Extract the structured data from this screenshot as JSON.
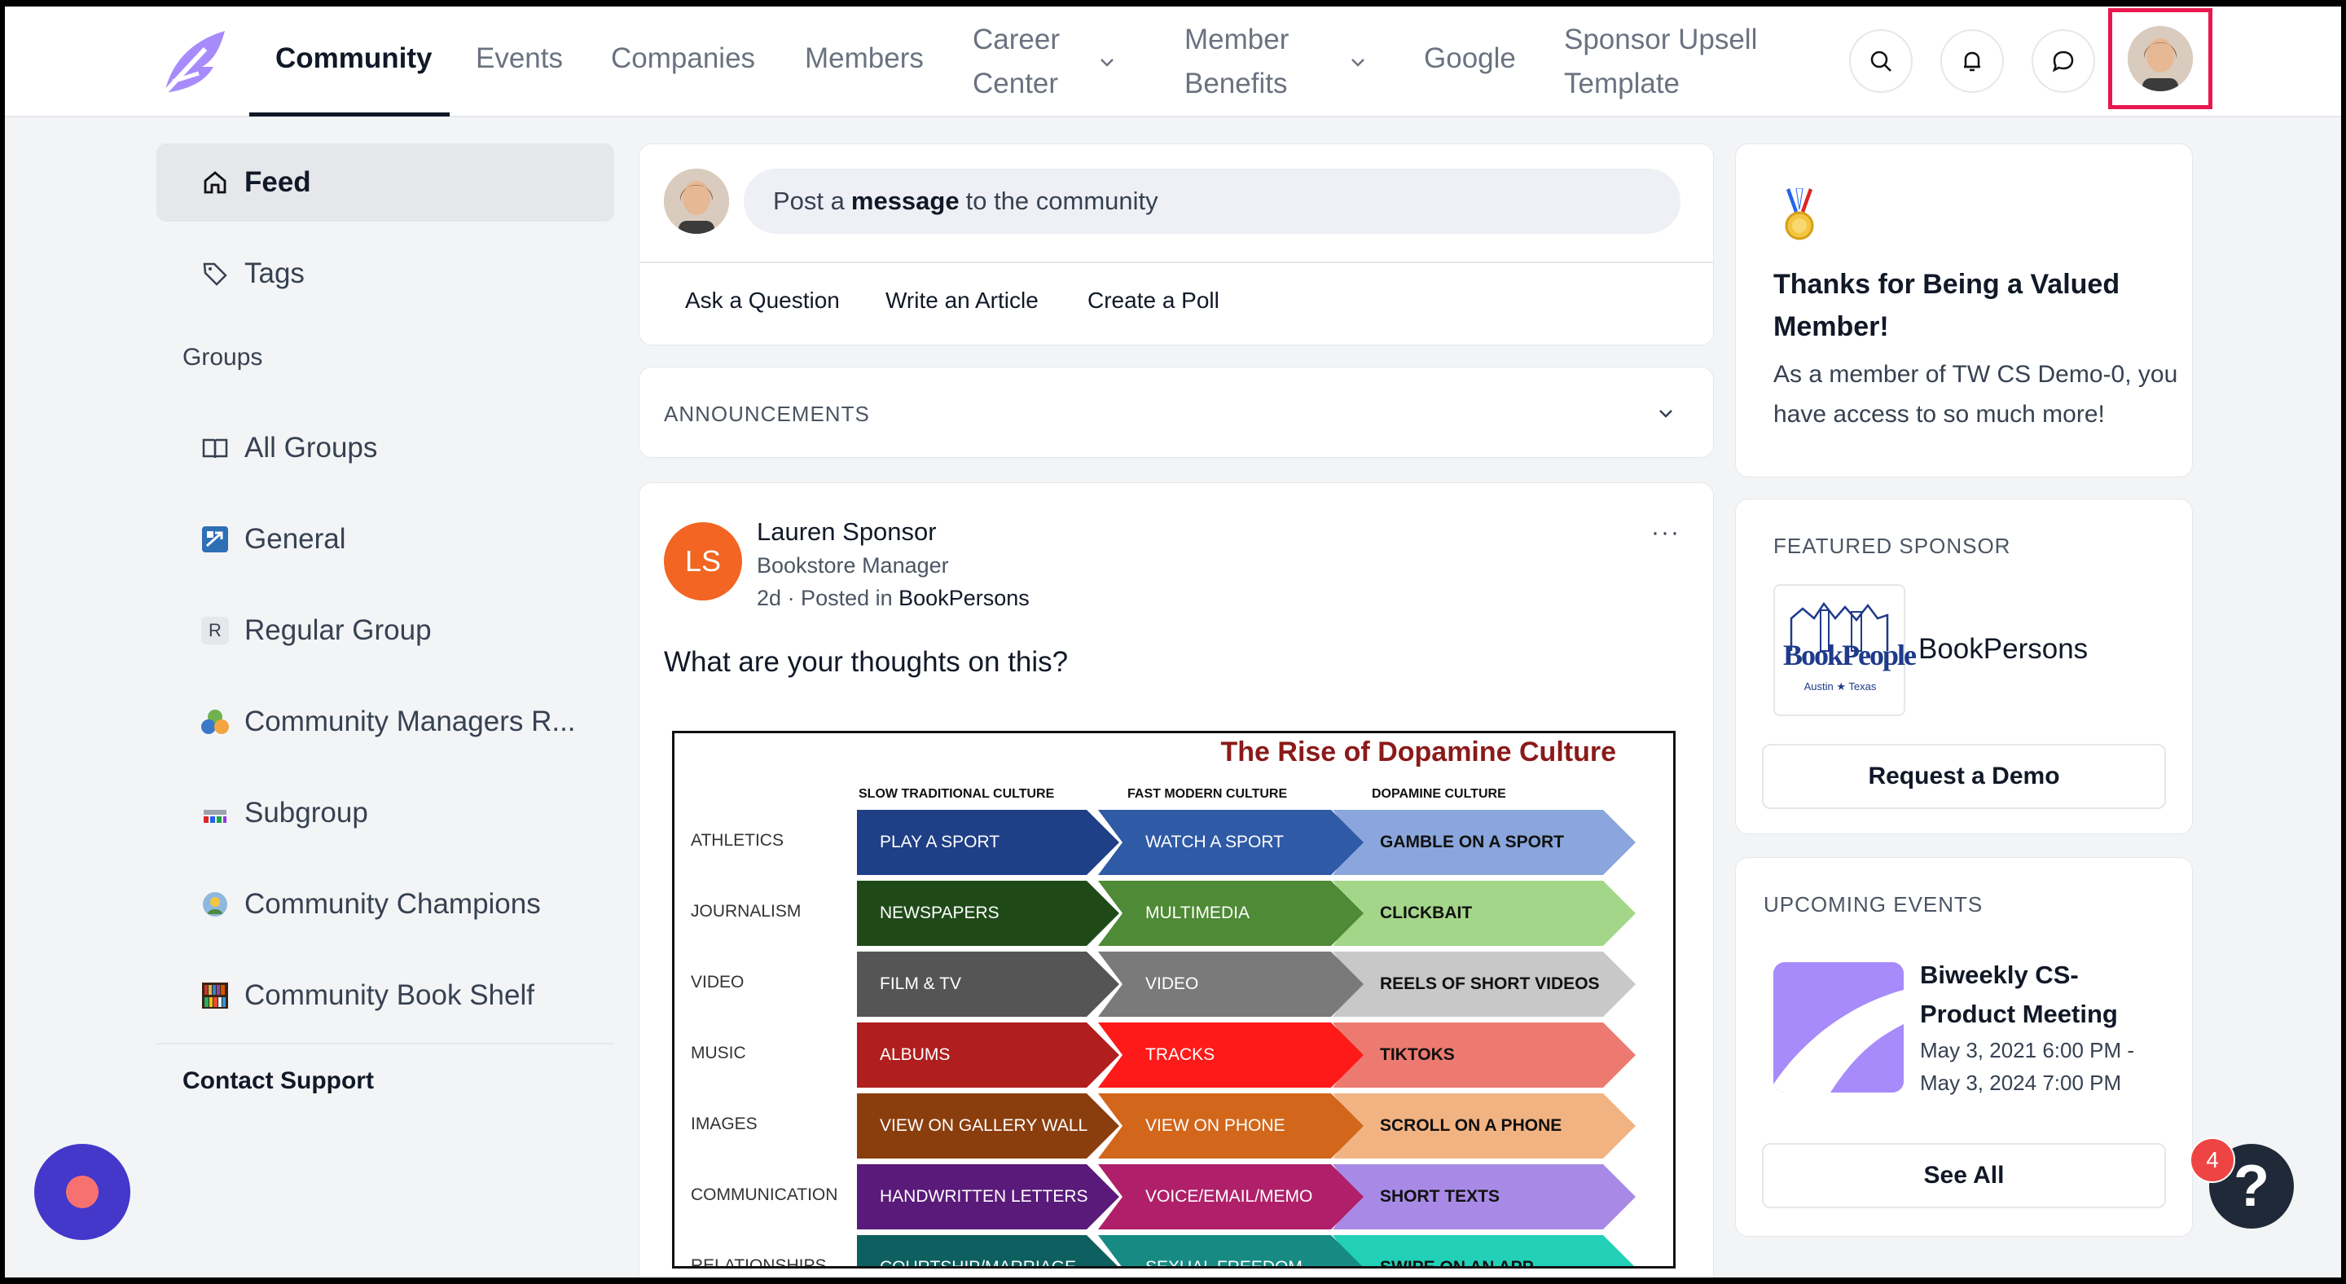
{
  "nav": {
    "items": [
      {
        "label": "Community",
        "active": true
      },
      {
        "label": "Events"
      },
      {
        "label": "Companies"
      },
      {
        "label": "Members"
      },
      {
        "label": "Career Center",
        "dropdown": true
      },
      {
        "label": "Member Benefits",
        "dropdown": true
      },
      {
        "label": "Google"
      },
      {
        "label": "Sponsor Upsell Template"
      }
    ],
    "icons": [
      "search-icon",
      "bell-icon",
      "chat-icon"
    ]
  },
  "sidebar": {
    "feed": "Feed",
    "tags": "Tags",
    "groups_label": "Groups",
    "groups": [
      {
        "label": "All Groups",
        "icon": "book-icon"
      },
      {
        "label": "General",
        "icon": "general-group-icon"
      },
      {
        "label": "Regular Group",
        "icon": "letter-r-icon",
        "initial": "R"
      },
      {
        "label": "Community Managers R...",
        "icon": "community-managers-icon"
      },
      {
        "label": "Subgroup",
        "icon": "subgroup-icon"
      },
      {
        "label": "Community Champions",
        "icon": "champions-icon"
      },
      {
        "label": "Community Book Shelf",
        "icon": "bookshelf-icon"
      }
    ],
    "contact": "Contact Support"
  },
  "composer": {
    "placeholder_pre": "Post a",
    "placeholder_bold": "message",
    "placeholder_post": "to the community",
    "actions": [
      "Ask a Question",
      "Write an Article",
      "Create a Poll"
    ]
  },
  "announcements": {
    "label": "ANNOUNCEMENTS"
  },
  "post": {
    "initials": "LS",
    "author": "Lauren Sponsor",
    "role": "Bookstore Manager",
    "time": "2d",
    "posted_in_prefix": "· Posted in",
    "group": "BookPersons",
    "menu": "···",
    "text": "What are your thoughts on this?",
    "infographic": {
      "title": "The Rise of Dopamine Culture",
      "columns": [
        "SLOW TRADITIONAL CULTURE",
        "FAST MODERN CULTURE",
        "DOPAMINE CULTURE"
      ],
      "rows": [
        {
          "label": "ATHLETICS",
          "cells": [
            "PLAY A SPORT",
            "WATCH A SPORT",
            "GAMBLE ON A SPORT"
          ],
          "colors": [
            "#1f3f86",
            "#2f5aa6",
            "#8aa6dc"
          ]
        },
        {
          "label": "JOURNALISM",
          "cells": [
            "NEWSPAPERS",
            "MULTIMEDIA",
            "CLICKBAIT"
          ],
          "colors": [
            "#1f4a18",
            "#4f8a36",
            "#a4d68a"
          ]
        },
        {
          "label": "VIDEO",
          "cells": [
            "FILM &  TV",
            "VIDEO",
            "REELS OF SHORT VIDEOS"
          ],
          "colors": [
            "#555555",
            "#7a7a7a",
            "#c8c8c8"
          ]
        },
        {
          "label": "MUSIC",
          "cells": [
            "ALBUMS",
            "TRACKS",
            "TIKTOKS"
          ],
          "colors": [
            "#b01e1e",
            "#ff1a1a",
            "#ec7a70"
          ]
        },
        {
          "label": "IMAGES",
          "cells": [
            "VIEW ON GALLERY WALL",
            "VIEW ON PHONE",
            "SCROLL ON A PHONE"
          ],
          "colors": [
            "#8a3e0e",
            "#d2661a",
            "#f2b382"
          ]
        },
        {
          "label": "COMMUNICATION",
          "cells": [
            "HANDWRITTEN LETTERS",
            "VOICE/EMAIL/MEMO",
            "SHORT TEXTS"
          ],
          "colors": [
            "#5a1a7a",
            "#b0206a",
            "#a88ae6"
          ]
        },
        {
          "label": "RELATIONSHIPS",
          "cells": [
            "COURTSHIP/MARRIAGE",
            "SEXUAL FREEDOM",
            "SWIPE ON AN APP"
          ],
          "colors": [
            "#0e5f5f",
            "#178a84",
            "#22d0b8"
          ]
        }
      ]
    }
  },
  "thanks": {
    "title": "Thanks for Being a Valued Member!",
    "body": "As a member of TW CS Demo-0, you have access to so much more!"
  },
  "sponsor": {
    "label": "FEATURED SPONSOR",
    "name": "BookPersons",
    "logo_text": "BookPeople",
    "logo_sub": "Austin ★ Texas",
    "button": "Request a Demo"
  },
  "events": {
    "label": "UPCOMING EVENTS",
    "title": "Biweekly CS-Product Meeting",
    "date": "May 3, 2021 6:00 PM - May 3, 2024 7:00 PM",
    "button": "See All"
  },
  "help": {
    "badge": "4",
    "glyph": "?"
  },
  "colors": {
    "accent": "#e8174e",
    "brand": "#a78bfa",
    "post_avatar": "#f26522"
  }
}
